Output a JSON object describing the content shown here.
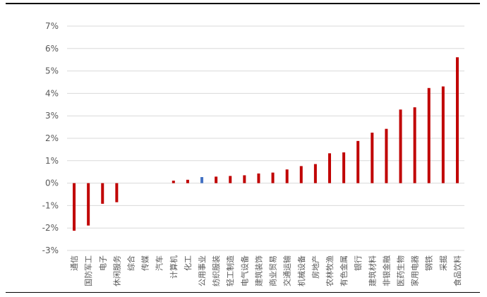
{
  "chart_data": {
    "type": "bar",
    "title": "",
    "xlabel": "",
    "ylabel": "",
    "ylim": [
      -0.03,
      0.07
    ],
    "yticks": [
      -0.03,
      -0.02,
      -0.01,
      0,
      0.01,
      0.02,
      0.03,
      0.04,
      0.05,
      0.06,
      0.07
    ],
    "ytick_labels": [
      "-3%",
      "-2%",
      "-1%",
      "0%",
      "1%",
      "2%",
      "3%",
      "4%",
      "5%",
      "6%",
      "7%"
    ],
    "grid": true,
    "legend": "none",
    "bar_color": "#C00000",
    "highlight_color": "#4472C4",
    "highlight_category": "公用事业",
    "categories": [
      "通信",
      "国防军工",
      "电子",
      "休闲服务",
      "综合",
      "传媒",
      "汽车",
      "计算机",
      "化工",
      "公用事业",
      "纺织服装",
      "轻工制造",
      "电气设备",
      "建筑装饰",
      "商业贸易",
      "交通运输",
      "机械设备",
      "房地产",
      "农林牧渔",
      "有色金属",
      "银行",
      "建筑材料",
      "非银金融",
      "医药生物",
      "家用电器",
      "钢铁",
      "采掘",
      "食品饮料"
    ],
    "values": [
      -0.0212,
      -0.0189,
      -0.0092,
      -0.0085,
      0.0,
      0.0,
      0.0,
      0.0011,
      0.0015,
      0.0027,
      0.0029,
      0.0032,
      0.0035,
      0.0043,
      0.0047,
      0.0061,
      0.0076,
      0.0085,
      0.0133,
      0.0137,
      0.0188,
      0.0225,
      0.0242,
      0.0328,
      0.0338,
      0.0424,
      0.0431,
      0.0561
    ]
  }
}
